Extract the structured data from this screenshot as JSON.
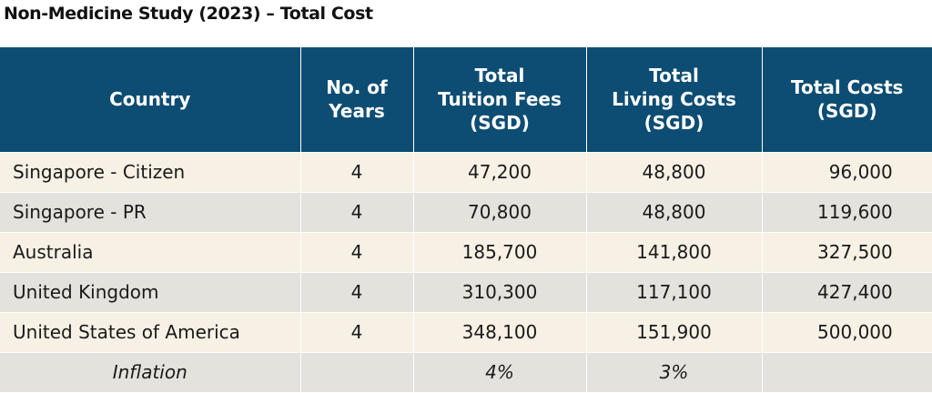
{
  "title": "Non-Medicine Study (2023) – Total Cost",
  "colors": {
    "header_bg": "#0e4d73",
    "header_text": "#ffffff",
    "row_light": "#f6f1e4",
    "row_dark": "#e4e2dd"
  },
  "chart_data": {
    "type": "table",
    "title": "Non-Medicine Study (2023) – Total Cost",
    "columns": [
      [
        "Country"
      ],
      [
        "No. of",
        "Years"
      ],
      [
        "Total",
        "Tuition Fees",
        "(SGD)"
      ],
      [
        "Total",
        "Living Costs",
        "(SGD)"
      ],
      [
        "Total Costs",
        "(SGD)"
      ]
    ],
    "rows": [
      {
        "country": "Singapore - Citizen",
        "years": "4",
        "tuition": "47,200",
        "living": "48,800",
        "total": "96,000"
      },
      {
        "country": "Singapore - PR",
        "years": "4",
        "tuition": "70,800",
        "living": "48,800",
        "total": "119,600"
      },
      {
        "country": "Australia",
        "years": "4",
        "tuition": "185,700",
        "living": "141,800",
        "total": "327,500"
      },
      {
        "country": "United Kingdom",
        "years": "4",
        "tuition": "310,300",
        "living": "117,100",
        "total": "427,400"
      },
      {
        "country": "United States of America",
        "years": "4",
        "tuition": "348,100",
        "living": "151,900",
        "total": "500,000"
      }
    ],
    "inflation_row": {
      "label": "Inflation",
      "years": "",
      "tuition": "4%",
      "living": "3%",
      "total": ""
    }
  }
}
